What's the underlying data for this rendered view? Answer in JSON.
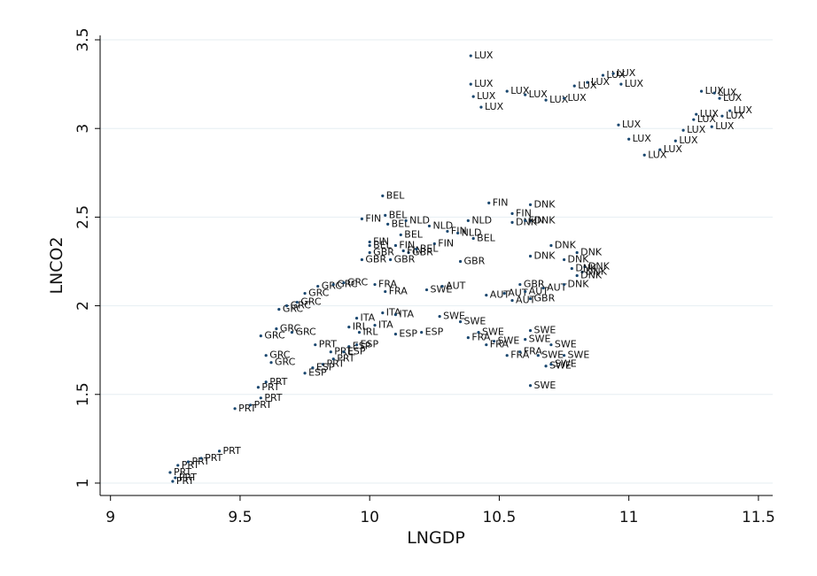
{
  "chart_data": {
    "type": "scatter",
    "x_label": "LNGDP",
    "y_label": "LNCO2",
    "xlim": [
      8.96,
      11.555
    ],
    "ylim": [
      0.93,
      3.525
    ],
    "xticks": [
      9,
      9.5,
      10,
      10.5,
      11,
      11.5
    ],
    "yticks": [
      1,
      1.5,
      2,
      2.5,
      3,
      3.5
    ],
    "grid": true,
    "color": "#1a476f",
    "x": [
      10.39,
      10.39,
      10.4,
      10.43,
      10.53,
      10.6,
      10.68,
      10.75,
      10.79,
      10.84,
      10.9,
      10.94,
      10.97,
      10.96,
      11.0,
      11.06,
      11.12,
      11.18,
      11.21,
      11.25,
      11.26,
      11.28,
      11.33,
      11.35,
      11.36,
      11.39,
      11.32,
      9.24,
      9.23,
      9.25,
      9.26,
      9.3,
      9.35,
      9.42,
      9.48,
      9.54,
      9.58,
      9.57,
      9.6,
      9.82,
      9.86,
      9.79,
      9.85,
      9.58,
      9.64,
      9.7,
      9.65,
      9.68,
      9.72,
      9.75,
      9.8,
      9.86,
      9.9,
      9.6,
      9.62,
      9.75,
      9.78,
      9.92,
      9.95,
      10.1,
      10.2,
      9.9,
      9.95,
      10.02,
      10.05,
      10.1,
      9.92,
      9.96,
      10.02,
      10.06,
      10.38,
      10.45,
      10.53,
      10.58,
      10.62,
      10.68,
      10.7,
      10.65,
      10.6,
      10.62,
      10.48,
      10.42,
      10.35,
      10.27,
      10.22,
      10.7,
      10.75,
      10.28,
      10.45,
      10.52,
      10.6,
      10.67,
      10.55,
      10.0,
      9.97,
      10.08,
      10.15,
      10.35,
      10.58,
      10.62,
      10.62,
      10.62,
      10.7,
      10.8,
      10.75,
      10.83,
      10.78,
      10.82,
      10.8,
      10.75,
      10.62,
      10.55,
      10.46,
      10.55,
      10.6,
      9.97,
      10.0,
      10.13,
      10.1,
      10.3,
      10.25,
      10.05,
      10.06,
      10.07,
      10.12,
      10.0,
      10.18,
      10.4,
      10.14,
      10.38,
      10.34,
      10.23
    ],
    "y": [
      3.41,
      3.25,
      3.18,
      3.12,
      3.21,
      3.19,
      3.16,
      3.17,
      3.24,
      3.26,
      3.3,
      3.31,
      3.25,
      3.02,
      2.94,
      2.85,
      2.88,
      2.93,
      2.99,
      3.05,
      3.08,
      3.21,
      3.2,
      3.17,
      3.07,
      3.1,
      3.01,
      1.01,
      1.06,
      1.03,
      1.1,
      1.12,
      1.14,
      1.18,
      1.42,
      1.44,
      1.48,
      1.54,
      1.57,
      1.67,
      1.7,
      1.78,
      1.74,
      1.83,
      1.87,
      1.85,
      1.98,
      2.0,
      2.02,
      2.07,
      2.11,
      2.12,
      2.13,
      1.72,
      1.68,
      1.62,
      1.65,
      1.77,
      1.78,
      1.84,
      1.85,
      1.74,
      1.93,
      1.89,
      1.96,
      1.95,
      1.88,
      1.85,
      2.12,
      2.08,
      1.82,
      1.78,
      1.72,
      1.74,
      1.55,
      1.66,
      1.67,
      1.72,
      1.81,
      1.86,
      1.8,
      1.85,
      1.91,
      1.94,
      2.09,
      1.78,
      1.72,
      2.11,
      2.06,
      2.07,
      2.08,
      2.1,
      2.03,
      2.3,
      2.26,
      2.26,
      2.3,
      2.25,
      2.12,
      2.04,
      2.57,
      2.48,
      2.34,
      2.3,
      2.26,
      2.22,
      2.21,
      2.19,
      2.17,
      2.12,
      2.28,
      2.47,
      2.58,
      2.52,
      2.48,
      2.49,
      2.36,
      2.31,
      2.34,
      2.42,
      2.35,
      2.62,
      2.51,
      2.46,
      2.4,
      2.34,
      2.32,
      2.38,
      2.48,
      2.48,
      2.41,
      2.45
    ],
    "labels": [
      "LUX",
      "LUX",
      "LUX",
      "LUX",
      "LUX",
      "LUX",
      "LUX",
      "LUX",
      "LUX",
      "LUX",
      "LUX",
      "LUX",
      "LUX",
      "LUX",
      "LUX",
      "LUX",
      "LUX",
      "LUX",
      "LUX",
      "LUX",
      "LUX",
      "LUX",
      "LUX",
      "LUX",
      "LUX",
      "LUX",
      "LUX",
      "PRT",
      "PRT",
      "PRT",
      "PRT",
      "PRT",
      "PRT",
      "PRT",
      "PRT",
      "PRT",
      "PRT",
      "PRT",
      "PRT",
      "PRT",
      "PRT",
      "PRT",
      "PRT",
      "GRC",
      "GRC",
      "GRC",
      "GRC",
      "GRC",
      "GRC",
      "GRC",
      "GRC",
      "GRC",
      "GRC",
      "GRC",
      "GRC",
      "ESP",
      "ESP",
      "ESP",
      "ESP",
      "ESP",
      "ESP",
      "ESP",
      "ITA",
      "ITA",
      "ITA",
      "ITA",
      "IRL",
      "IRL",
      "FRA",
      "FRA",
      "FRA",
      "FRA",
      "FRA",
      "FRA",
      "SWE",
      "SWE",
      "SWE",
      "SWE",
      "SWE",
      "SWE",
      "SWE",
      "SWE",
      "SWE",
      "SWE",
      "SWE",
      "SWE",
      "SWE",
      "AUT",
      "AUT",
      "AUT",
      "AUT",
      "AUT",
      "AUT",
      "GBR",
      "GBR",
      "GBR",
      "GBR",
      "GBR",
      "GBR",
      "GBR",
      "DNK",
      "DNK",
      "DNK",
      "DNK",
      "DNK",
      "DNK",
      "DNK",
      "DNK",
      "DNK",
      "DNK",
      "DNK",
      "DNK",
      "FIN",
      "FIN",
      "FIN",
      "FIN",
      "FIN",
      "FIN",
      "FIN",
      "FIN",
      "FIN",
      "BEL",
      "BEL",
      "BEL",
      "BEL",
      "BEL",
      "BEL",
      "BEL",
      "NLD",
      "NLD",
      "NLD",
      "NLD"
    ]
  }
}
